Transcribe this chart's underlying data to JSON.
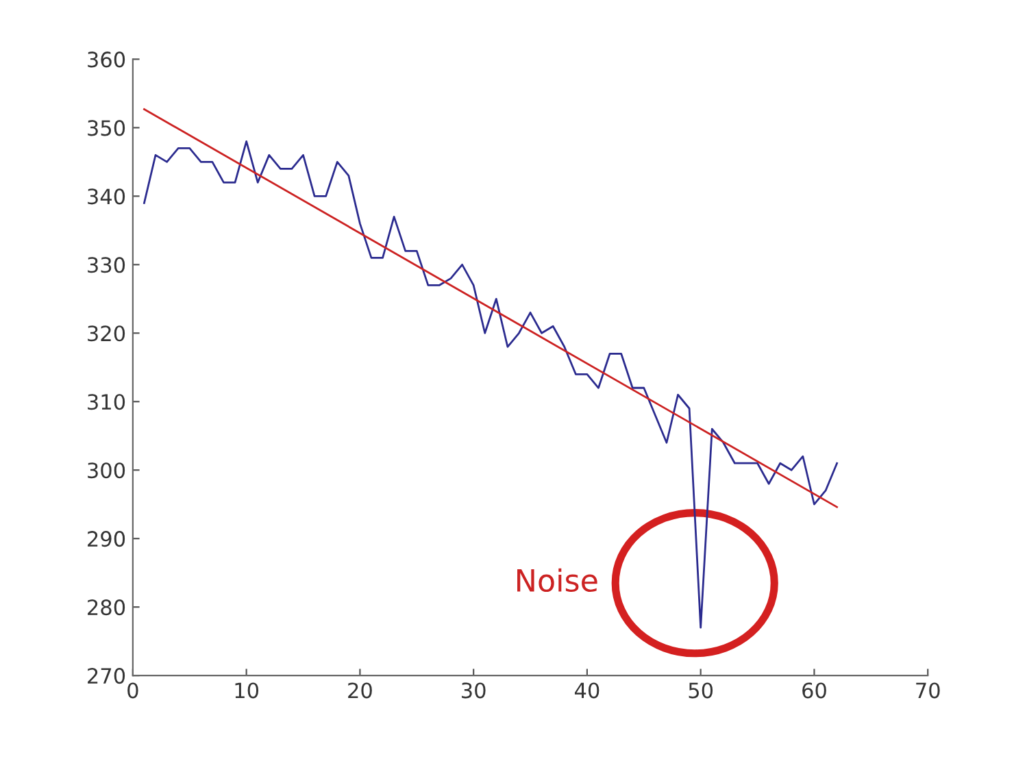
{
  "chart_data": {
    "type": "line",
    "x": [
      1,
      2,
      3,
      4,
      5,
      6,
      7,
      8,
      9,
      10,
      11,
      12,
      13,
      14,
      15,
      16,
      17,
      18,
      19,
      20,
      21,
      22,
      23,
      24,
      25,
      26,
      27,
      28,
      29,
      30,
      31,
      32,
      33,
      34,
      35,
      36,
      37,
      38,
      39,
      40,
      41,
      42,
      43,
      44,
      45,
      46,
      47,
      48,
      49,
      50,
      51,
      52,
      53,
      54,
      55,
      56,
      57,
      58,
      59,
      60,
      61,
      62
    ],
    "series": [
      {
        "color": "#2b2b8f",
        "values": [
          339,
          346,
          345,
          347,
          347,
          345,
          345,
          342,
          342,
          348,
          342,
          346,
          344,
          344,
          346,
          340,
          340,
          345,
          343,
          336,
          331,
          331,
          337,
          332,
          332,
          327,
          327,
          328,
          330,
          327,
          320,
          325,
          318,
          320,
          323,
          320,
          321,
          318,
          314,
          314,
          312,
          317,
          317,
          312,
          312,
          308,
          304,
          311,
          309,
          277,
          306,
          304,
          301,
          301,
          301,
          298,
          301,
          300,
          302,
          295,
          297,
          301
        ]
      },
      {
        "type": "line",
        "color": "#cc2222",
        "x": [
          1,
          62
        ],
        "values": [
          352.7,
          294.6
        ]
      }
    ],
    "xlim": [
      0,
      70
    ],
    "xticks": [
      0,
      10,
      20,
      30,
      40,
      50,
      60,
      70
    ],
    "ylim": [
      270,
      360
    ],
    "yticks": [
      270,
      280,
      290,
      300,
      310,
      320,
      330,
      340,
      350,
      360
    ],
    "grid": false,
    "legend": false,
    "marker": "none",
    "line_style": "solid",
    "annotations": [
      "Noise"
    ]
  }
}
